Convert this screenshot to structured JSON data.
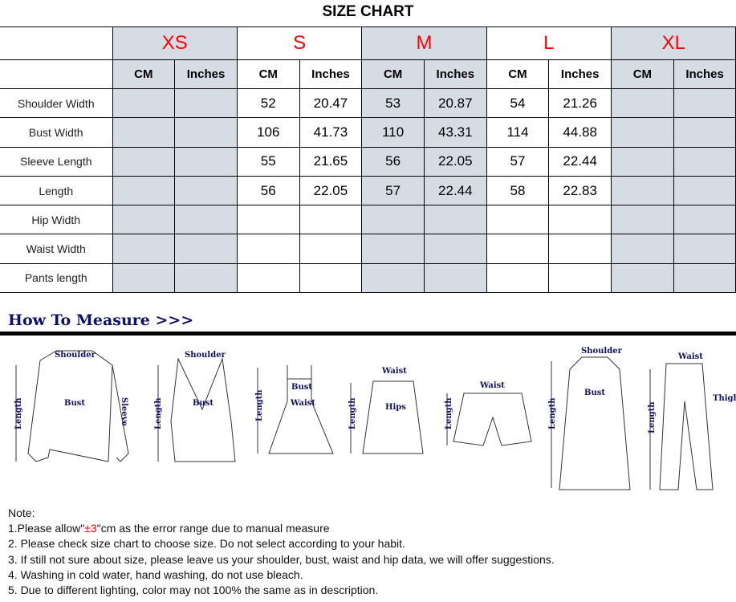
{
  "title": "SIZE CHART",
  "sizes": [
    "XS",
    "S",
    "M",
    "L",
    "XL"
  ],
  "units": [
    "CM",
    "Inches"
  ],
  "rows": [
    {
      "label": "Shoulder Width",
      "values": [
        "",
        "",
        "52",
        "20.47",
        "53",
        "20.87",
        "54",
        "21.26",
        "",
        ""
      ]
    },
    {
      "label": "Bust Width",
      "values": [
        "",
        "",
        "106",
        "41.73",
        "110",
        "43.31",
        "114",
        "44.88",
        "",
        ""
      ]
    },
    {
      "label": "Sleeve Length",
      "values": [
        "",
        "",
        "55",
        "21.65",
        "56",
        "22.05",
        "57",
        "22.44",
        "",
        ""
      ]
    },
    {
      "label": "Length",
      "values": [
        "",
        "",
        "56",
        "22.05",
        "57",
        "22.44",
        "58",
        "22.83",
        "",
        ""
      ]
    },
    {
      "label": "Hip Width",
      "values": [
        "",
        "",
        "",
        "",
        "",
        "",
        "",
        "",
        "",
        ""
      ]
    },
    {
      "label": "Waist Width",
      "values": [
        "",
        "",
        "",
        "",
        "",
        "",
        "",
        "",
        "",
        ""
      ]
    },
    {
      "label": "Pants length",
      "values": [
        "",
        "",
        "",
        "",
        "",
        "",
        "",
        "",
        "",
        ""
      ]
    }
  ],
  "colors": {
    "size_label": "#ff0000",
    "shaded_column": "#d6dce4",
    "heading": "#10106a"
  },
  "how_to_measure": "How To Measure >>>",
  "figure_labels": {
    "shoulder": "Shoulder",
    "bust": "Bust",
    "sleeve": "Sleeve",
    "length": "Length",
    "waist": "Waist",
    "hips": "Hips",
    "thigh": "Thigh"
  },
  "notes": {
    "heading": "Note:",
    "n1_pre": "1.Please allow\"",
    "n1_red": "±3",
    "n1_post": "\"cm as the error range due to manual measure",
    "n2": "2. Please check size chart to choose size. Do not select according to your habit.",
    "n3": "3. If still not sure about size, please leave us your shoulder, bust, waist and hip data, we will offer suggestions.",
    "n4": "4. Washing in cold water, hand washing, do not use bleach.",
    "n5": "5. Due to different lighting, color may not 100% the same as in description."
  }
}
